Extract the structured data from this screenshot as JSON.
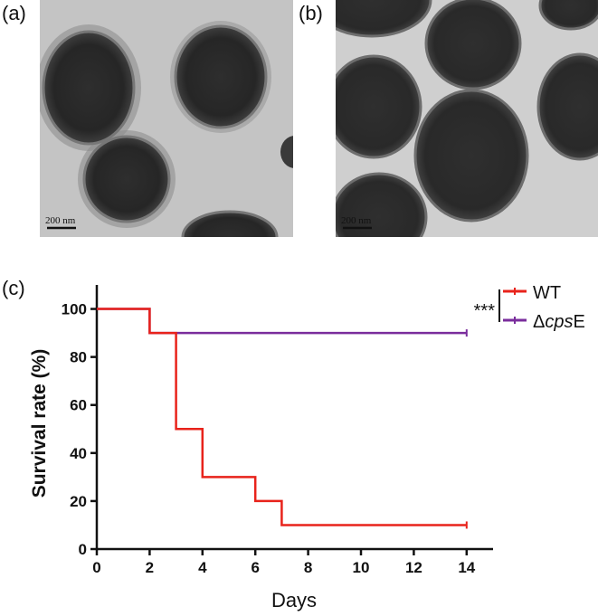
{
  "panels": {
    "a": {
      "label": "(a)",
      "scale_bar_text": "200 nm"
    },
    "b": {
      "label": "(b)",
      "scale_bar_text": "200 nm"
    },
    "c": {
      "label": "(c)"
    }
  },
  "chart_data": {
    "type": "line",
    "step": true,
    "xlabel": "Days",
    "ylabel": "Survival rate (%)",
    "xlim": [
      0,
      15
    ],
    "ylim": [
      0,
      110
    ],
    "xticks": [
      0,
      2,
      4,
      6,
      8,
      10,
      12,
      14
    ],
    "yticks": [
      0,
      20,
      40,
      60,
      80,
      100
    ],
    "grid": false,
    "legend_position": "top-right",
    "significance": "***",
    "series": [
      {
        "name": "WT",
        "color": "#e8231b",
        "x": [
          0,
          2,
          3,
          4,
          6,
          7,
          14
        ],
        "y": [
          100,
          90,
          50,
          30,
          20,
          10,
          10
        ]
      },
      {
        "name": "ΔcpsE",
        "name_parts": {
          "prefix": "Δ",
          "italic": "cps",
          "suffix": "E"
        },
        "color": "#7a2d9c",
        "x": [
          0,
          2,
          14
        ],
        "y": [
          100,
          90,
          90
        ]
      }
    ]
  }
}
